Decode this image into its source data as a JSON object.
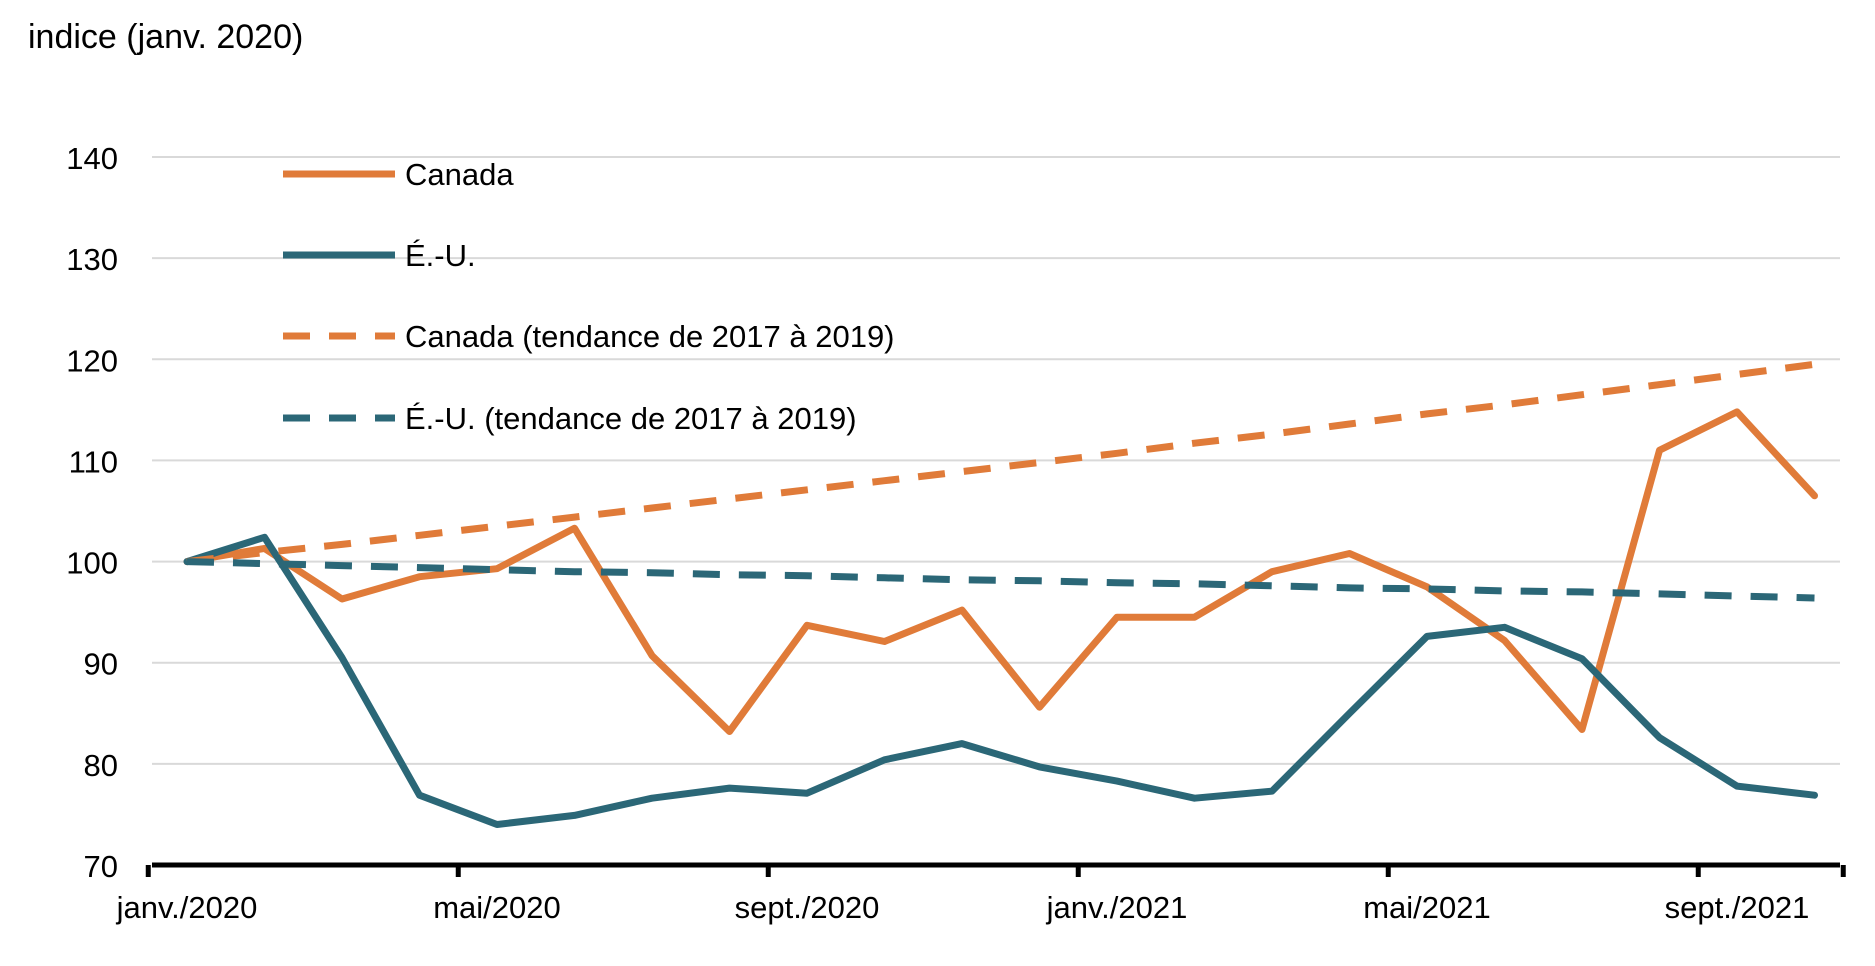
{
  "chart_data": {
    "type": "line",
    "ylabel": "indice (janv. 2020)",
    "ylim": [
      70,
      140
    ],
    "yticks": [
      70,
      80,
      90,
      100,
      110,
      120,
      130,
      140
    ],
    "x_tick_labels": [
      "janv./2020",
      "mai/2020",
      "sept./2020",
      "janv./2021",
      "mai/2021",
      "sept./2021"
    ],
    "categories": [
      "janv. 2020",
      "févr. 2020",
      "mars 2020",
      "avr. 2020",
      "mai 2020",
      "juin 2020",
      "juil. 2020",
      "août 2020",
      "sept. 2020",
      "oct. 2020",
      "nov. 2020",
      "déc. 2020",
      "janv. 2021",
      "févr. 2021",
      "mars 2021",
      "avr. 2021",
      "mai 2021",
      "juin 2021",
      "juil. 2021",
      "août 2021",
      "sept. 2021",
      "oct. 2021"
    ],
    "grid": true,
    "legend_position": "top-left",
    "series": [
      {
        "name": "Canada",
        "color": "#E07B39",
        "dash": false,
        "values": [
          100,
          101.3,
          96.3,
          98.5,
          99.3,
          103.3,
          90.7,
          83.2,
          93.7,
          92.1,
          95.2,
          85.6,
          94.5,
          94.5,
          99.0,
          100.8,
          97.5,
          92.2,
          83.4,
          111.0,
          114.8,
          106.5
        ]
      },
      {
        "name": "É.-U.",
        "color": "#2B6777",
        "dash": false,
        "values": [
          100,
          102.4,
          90.5,
          76.9,
          74.0,
          74.9,
          76.6,
          77.6,
          77.1,
          80.4,
          82.0,
          79.7,
          78.3,
          76.6,
          77.3,
          85.0,
          92.6,
          93.5,
          90.4,
          82.6,
          77.8,
          76.9
        ]
      },
      {
        "name": "Canada (tendance de 2017 à 2019)",
        "color": "#E07B39",
        "dash": true,
        "values": [
          100.0,
          100.9,
          101.7,
          102.6,
          103.5,
          104.4,
          105.3,
          106.2,
          107.1,
          108.0,
          108.9,
          109.8,
          110.7,
          111.7,
          112.6,
          113.6,
          114.6,
          115.5,
          116.5,
          117.5,
          118.5,
          119.5
        ]
      },
      {
        "name": "É.-U. (tendance de 2017 à 2019)",
        "color": "#2B6777",
        "dash": true,
        "values": [
          100.0,
          99.8,
          99.6,
          99.4,
          99.2,
          99.0,
          98.9,
          98.7,
          98.6,
          98.4,
          98.2,
          98.1,
          97.9,
          97.8,
          97.6,
          97.4,
          97.3,
          97.1,
          97.0,
          96.8,
          96.6,
          96.4
        ]
      }
    ]
  }
}
